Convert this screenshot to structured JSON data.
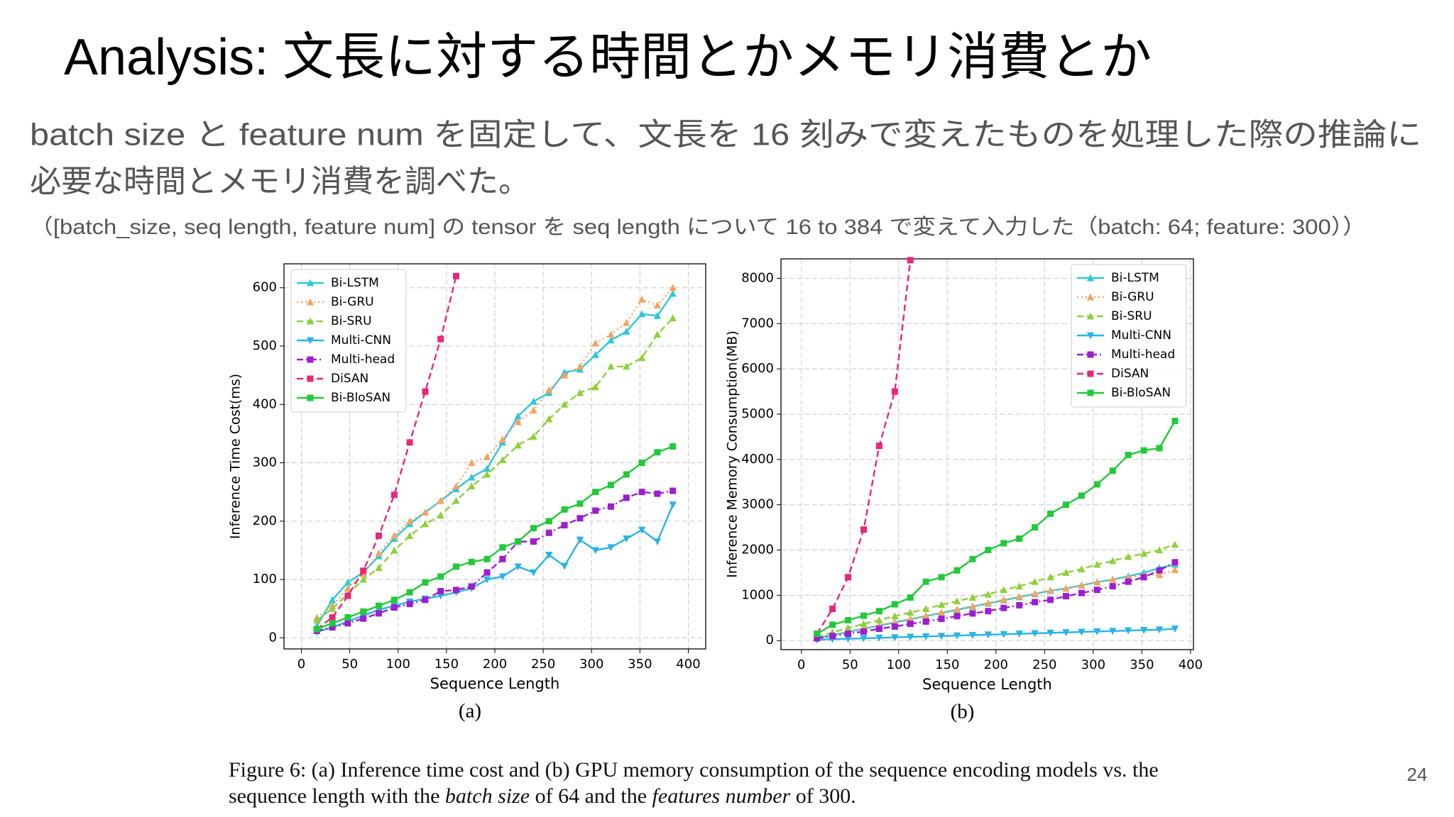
{
  "title": "Analysis: 文長に対する時間とかメモリ消費とか",
  "body": [
    "batch size と feature num を固定して、文長を 16 刻みで変えたものを処理した際の推論に",
    "必要な時間とメモリ消費を調べた。"
  ],
  "note": "（[batch_size, seq length, feature num] の tensor を seq length について 16 to 384 で変えて入力した（batch: 64; feature: 300））",
  "page_number": "24",
  "caption": [
    [
      {
        "text": "Figure 6: (a) Inference time cost and (b) GPU memory consumption of the sequence encoding models vs. the",
        "italic": false
      }
    ],
    [
      {
        "text": "sequence length with the ",
        "italic": false
      },
      {
        "text": "batch size",
        "italic": true
      },
      {
        "text": " of 64 and the ",
        "italic": false
      },
      {
        "text": "features number",
        "italic": true
      },
      {
        "text": " of 300.",
        "italic": false
      }
    ]
  ],
  "chart_data": [
    {
      "type": "line",
      "label": "(a)",
      "x_label": "Sequence Length",
      "y_label": "Inference Time Cost(ms)",
      "legend": "upper left",
      "grid": true,
      "x": [
        16,
        32,
        48,
        64,
        80,
        96,
        112,
        128,
        144,
        160,
        176,
        192,
        208,
        224,
        240,
        256,
        272,
        288,
        304,
        320,
        336,
        352,
        368,
        384
      ],
      "xlim": [
        -18,
        418
      ],
      "xticks": [
        0,
        50,
        100,
        150,
        200,
        250,
        300,
        350,
        400
      ],
      "ylim": [
        -19,
        641
      ],
      "yticks": [
        0,
        100,
        200,
        300,
        400,
        500,
        600
      ],
      "series": [
        {
          "name": "Bi-LSTM",
          "color": "#2ec8d6",
          "linestyle": "solid",
          "marker": "^",
          "values": [
            20,
            65,
            95,
            112,
            140,
            170,
            195,
            215,
            235,
            255,
            275,
            290,
            335,
            380,
            405,
            420,
            455,
            460,
            485,
            510,
            525,
            555,
            552,
            590
          ]
        },
        {
          "name": "Bi-GRU",
          "color": "#f4a460",
          "linestyle": "dotted",
          "marker": "^",
          "values": [
            35,
            55,
            85,
            110,
            145,
            175,
            200,
            215,
            235,
            260,
            300,
            310,
            340,
            370,
            390,
            425,
            450,
            465,
            505,
            520,
            540,
            580,
            570,
            600
          ]
        },
        {
          "name": "Bi-SRU",
          "color": "#8fcf3c",
          "linestyle": "dashed",
          "marker": "^",
          "values": [
            30,
            50,
            75,
            100,
            120,
            150,
            175,
            195,
            210,
            235,
            260,
            280,
            305,
            330,
            345,
            375,
            400,
            420,
            430,
            465,
            465,
            480,
            520,
            548
          ]
        },
        {
          "name": "Multi-CNN",
          "color": "#29b3e6",
          "linestyle": "solid",
          "marker": "v",
          "values": [
            10,
            18,
            28,
            38,
            48,
            55,
            62,
            67,
            72,
            78,
            85,
            100,
            105,
            122,
            112,
            142,
            123,
            168,
            150,
            155,
            170,
            185,
            165,
            228
          ]
        },
        {
          "name": "Multi-head",
          "color": "#9b1fd1",
          "linestyle": "dashdot",
          "marker": "s",
          "values": [
            12,
            18,
            25,
            33,
            42,
            52,
            58,
            65,
            80,
            82,
            88,
            112,
            135,
            165,
            165,
            180,
            193,
            205,
            218,
            225,
            240,
            250,
            247,
            252
          ]
        },
        {
          "name": "DiSAN",
          "color": "#e8277a",
          "linestyle": "dashed",
          "marker": "s",
          "values": [
            15,
            35,
            72,
            115,
            175,
            245,
            335,
            422,
            512,
            620,
            null,
            null,
            null,
            null,
            null,
            null,
            null,
            null,
            null,
            null,
            null,
            null,
            null,
            null
          ]
        },
        {
          "name": "Bi-BloSAN",
          "color": "#22c93a",
          "linestyle": "solid",
          "marker": "s",
          "values": [
            15,
            25,
            35,
            45,
            55,
            65,
            78,
            95,
            105,
            122,
            130,
            135,
            155,
            165,
            188,
            200,
            220,
            230,
            250,
            262,
            280,
            300,
            318,
            328
          ]
        }
      ]
    },
    {
      "type": "line",
      "label": "(b)",
      "x_label": "Sequence Length",
      "y_label": "Inference Memory Consumption(MB)",
      "legend": "upper right",
      "grid": true,
      "x": [
        16,
        32,
        48,
        64,
        80,
        96,
        112,
        128,
        144,
        160,
        176,
        192,
        208,
        224,
        240,
        256,
        272,
        288,
        304,
        320,
        336,
        352,
        368,
        384
      ],
      "xlim": [
        -21,
        403
      ],
      "xticks": [
        0,
        50,
        100,
        150,
        200,
        250,
        300,
        350,
        400
      ],
      "ylim": [
        -200,
        8430
      ],
      "yticks": [
        0,
        1000,
        2000,
        3000,
        4000,
        5000,
        6000,
        7000,
        8000
      ],
      "series": [
        {
          "name": "Bi-LSTM",
          "color": "#2ec8d6",
          "linestyle": "solid",
          "marker": "^",
          "values": [
            50,
            120,
            190,
            260,
            330,
            400,
            470,
            540,
            610,
            680,
            750,
            820,
            890,
            960,
            1030,
            1100,
            1150,
            1220,
            1290,
            1350,
            1420,
            1500,
            1600,
            1680
          ]
        },
        {
          "name": "Bi-GRU",
          "color": "#f4a460",
          "linestyle": "dotted",
          "marker": "^",
          "values": [
            60,
            130,
            200,
            270,
            340,
            410,
            480,
            550,
            620,
            690,
            760,
            830,
            900,
            970,
            1040,
            1110,
            1150,
            1220,
            1290,
            1350,
            1400,
            1450,
            1450,
            1560
          ]
        },
        {
          "name": "Bi-SRU",
          "color": "#8fcf3c",
          "linestyle": "dashed",
          "marker": "^",
          "values": [
            80,
            180,
            280,
            370,
            450,
            540,
            620,
            700,
            790,
            870,
            950,
            1020,
            1120,
            1200,
            1300,
            1400,
            1500,
            1580,
            1680,
            1760,
            1850,
            1920,
            2000,
            2120
          ]
        },
        {
          "name": "Multi-CNN",
          "color": "#29b3e6",
          "linestyle": "solid",
          "marker": "v",
          "values": [
            20,
            30,
            40,
            50,
            60,
            70,
            80,
            90,
            100,
            110,
            120,
            130,
            140,
            150,
            160,
            170,
            180,
            190,
            200,
            210,
            220,
            230,
            240,
            260
          ]
        },
        {
          "name": "Multi-head",
          "color": "#9b1fd1",
          "linestyle": "dashdot",
          "marker": "s",
          "values": [
            50,
            100,
            150,
            200,
            260,
            310,
            370,
            420,
            480,
            540,
            600,
            650,
            720,
            780,
            850,
            900,
            980,
            1050,
            1120,
            1200,
            1300,
            1400,
            1550,
            1730
          ]
        },
        {
          "name": "DiSAN",
          "color": "#e8277a",
          "linestyle": "dashed",
          "marker": "s",
          "values": [
            150,
            700,
            1400,
            2450,
            4300,
            5500,
            8400,
            null,
            null,
            null,
            null,
            null,
            null,
            null,
            null,
            null,
            null,
            null,
            null,
            null,
            null,
            null,
            null,
            null
          ]
        },
        {
          "name": "Bi-BloSAN",
          "color": "#22c93a",
          "linestyle": "solid",
          "marker": "s",
          "values": [
            150,
            350,
            450,
            550,
            650,
            800,
            950,
            1300,
            1400,
            1550,
            1800,
            2000,
            2150,
            2250,
            2500,
            2800,
            3000,
            3200,
            3450,
            3750,
            4100,
            4200,
            4250,
            4850
          ]
        }
      ]
    }
  ]
}
